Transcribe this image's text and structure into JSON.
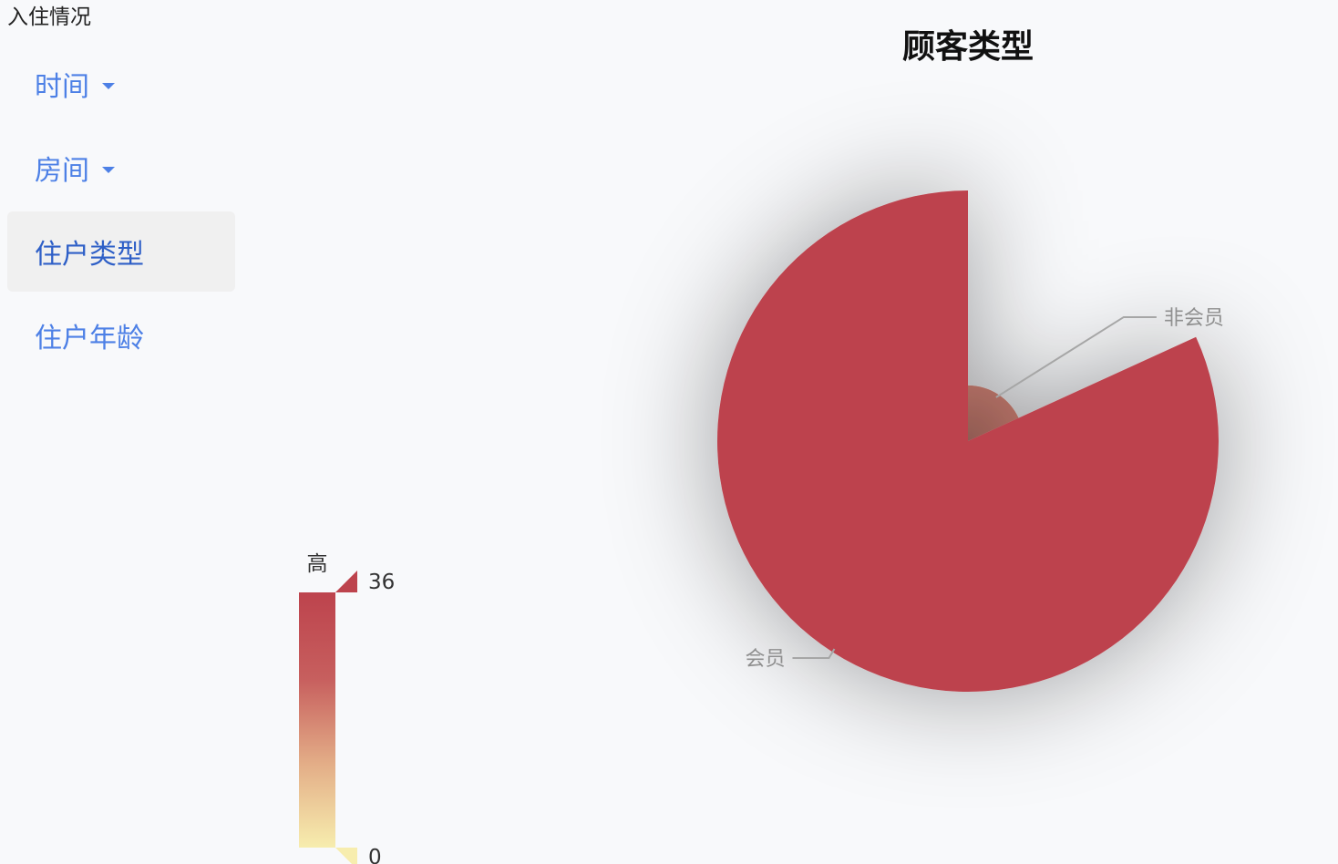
{
  "header": {
    "title": "入住情况"
  },
  "sidebar": {
    "items": [
      {
        "label": "时间",
        "has_dropdown": true,
        "active": false
      },
      {
        "label": "房间",
        "has_dropdown": true,
        "active": false
      },
      {
        "label": "住户类型",
        "has_dropdown": false,
        "active": true
      },
      {
        "label": "住户年龄",
        "has_dropdown": false,
        "active": false
      }
    ]
  },
  "chart_data": {
    "type": "pie",
    "title": "顾客类型",
    "rose_type": "radius",
    "slices": [
      {
        "name": "会员",
        "value": 36
      },
      {
        "name": "非会员",
        "value": 8
      }
    ],
    "visual_map": {
      "min": 0,
      "max": 36,
      "high_label": "高",
      "colors": [
        "#f7edae",
        "#e3ad87",
        "#c75f5e",
        "#bd434d"
      ]
    },
    "colors": {
      "member": "#bd434d",
      "non_member": "#cc7e70",
      "label_text": "#8f8f8f"
    }
  }
}
